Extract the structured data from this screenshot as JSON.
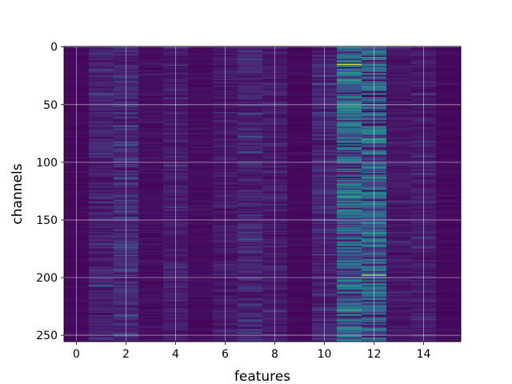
{
  "chart_data": {
    "type": "heatmap",
    "title": "",
    "xlabel": "features",
    "ylabel": "channels",
    "x_ticks": [
      0,
      2,
      4,
      6,
      8,
      10,
      12,
      14
    ],
    "y_ticks": [
      0,
      50,
      100,
      150,
      200,
      250
    ],
    "xlim": [
      -0.5,
      15.5
    ],
    "ylim": [
      255.5,
      -0.5
    ],
    "grid": true,
    "colormap": "viridis",
    "n_features": 16,
    "n_channels": 256,
    "cell_values_note": "approximate; individual cells not labeled",
    "column_mean_intensity": [
      0.03,
      0.12,
      0.15,
      0.05,
      0.1,
      0.04,
      0.09,
      0.14,
      0.1,
      0.03,
      0.14,
      0.45,
      0.42,
      0.08,
      0.1,
      0.03
    ],
    "highlights": [
      {
        "feature": 11,
        "channel": 15,
        "value": 0.95
      },
      {
        "feature": 11,
        "channel": 22,
        "value": 0.65
      },
      {
        "feature": 11,
        "channel": 29,
        "value": 0.7
      },
      {
        "feature": 11,
        "channel": 52,
        "value": 0.7
      },
      {
        "feature": 11,
        "channel": 55,
        "value": 0.65
      },
      {
        "feature": 11,
        "channel": 130,
        "value": 0.68
      },
      {
        "feature": 11,
        "channel": 228,
        "value": 0.72
      },
      {
        "feature": 12,
        "channel": 9,
        "value": 0.6
      },
      {
        "feature": 12,
        "channel": 35,
        "value": 0.62
      },
      {
        "feature": 12,
        "channel": 53,
        "value": 0.65
      },
      {
        "feature": 12,
        "channel": 80,
        "value": 0.75
      },
      {
        "feature": 12,
        "channel": 128,
        "value": 0.62
      },
      {
        "feature": 12,
        "channel": 162,
        "value": 0.65
      },
      {
        "feature": 12,
        "channel": 198,
        "value": 0.9
      },
      {
        "feature": 12,
        "channel": 229,
        "value": 0.5
      },
      {
        "feature": 1,
        "channel": 207,
        "value": 0.5
      },
      {
        "feature": 2,
        "channel": 148,
        "value": 0.4
      },
      {
        "feature": 7,
        "channel": 78,
        "value": 0.45
      }
    ]
  }
}
